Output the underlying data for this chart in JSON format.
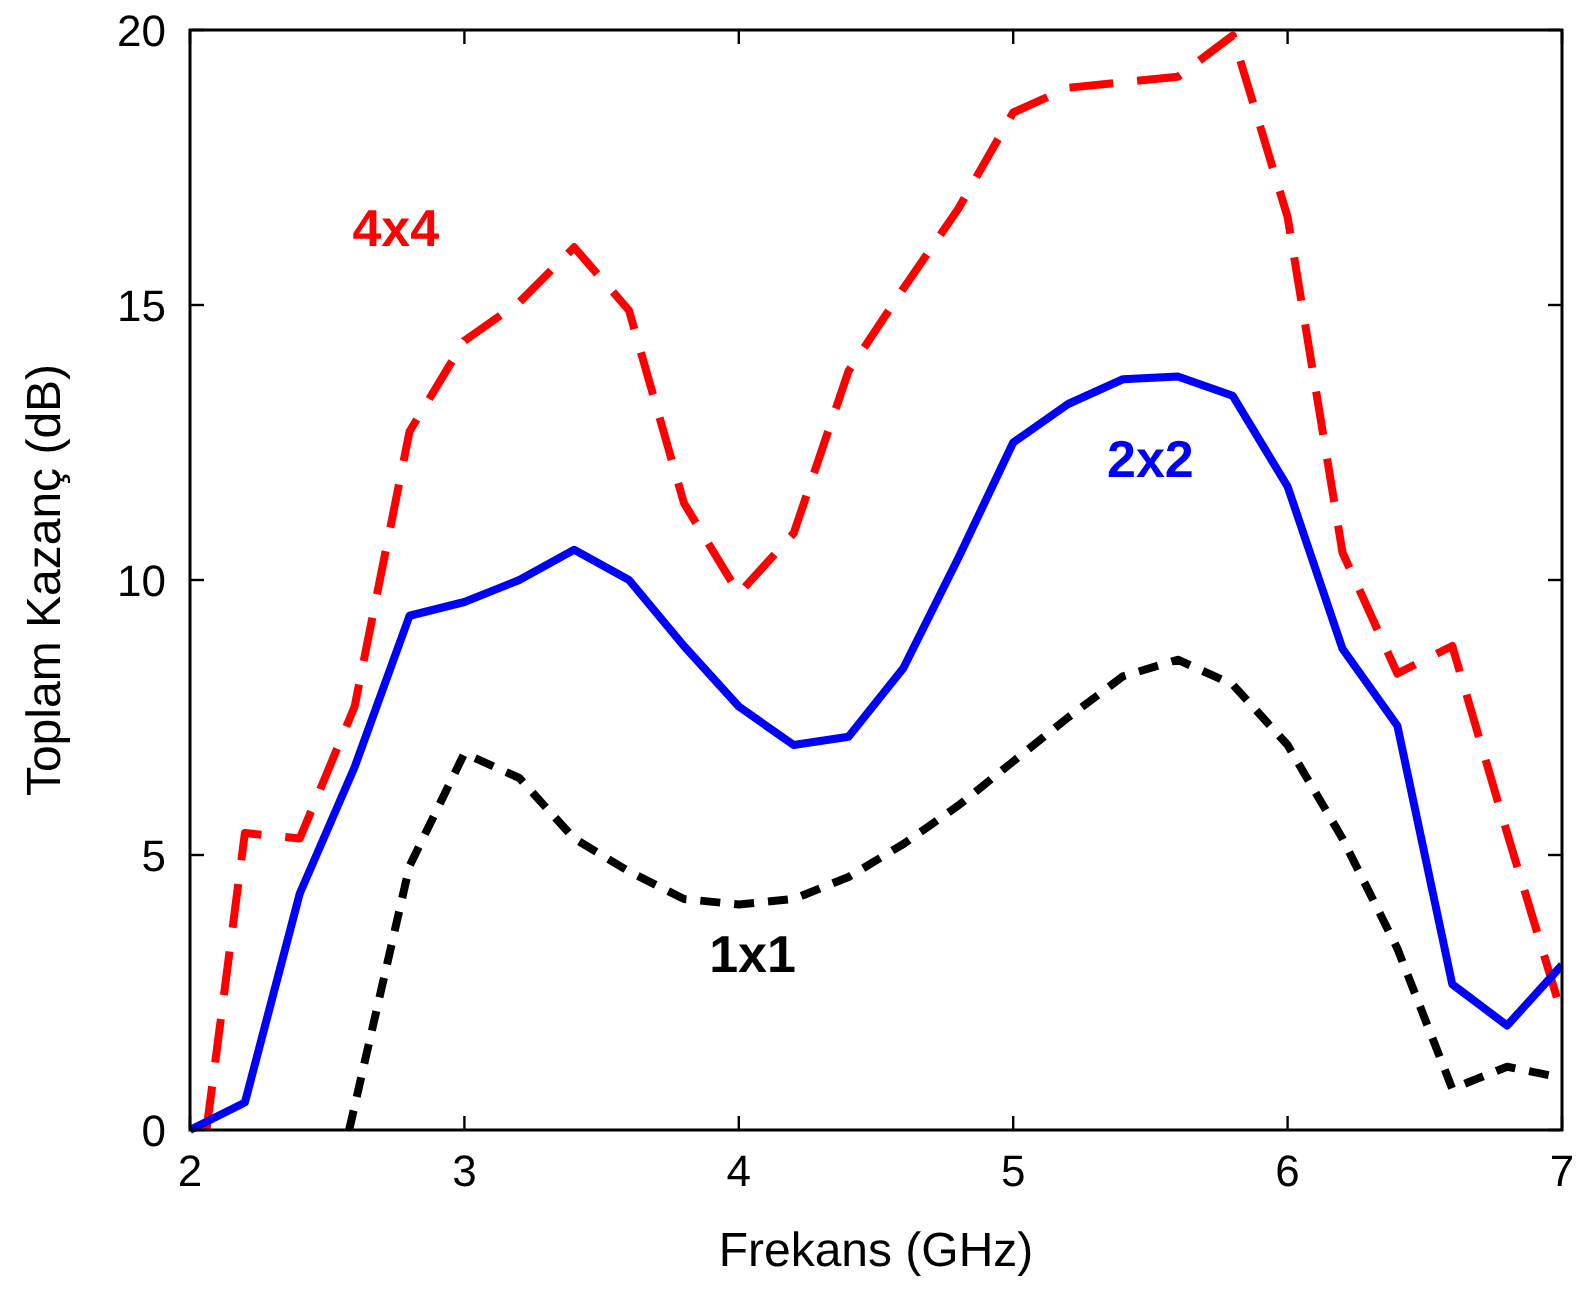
{
  "chart_data": {
    "type": "line",
    "xlabel": "Frekans (GHz)",
    "ylabel": "Toplam Kazanç (dB)",
    "x": [
      2,
      2.2,
      2.4,
      2.6,
      2.8,
      3,
      3.2,
      3.4,
      3.6,
      3.8,
      4,
      4.2,
      4.4,
      4.6,
      4.8,
      5,
      5.2,
      5.4,
      5.6,
      5.8,
      6,
      6.2,
      6.4,
      6.6,
      6.8,
      7
    ],
    "series": [
      {
        "name": "4x4",
        "color": "#ff0000",
        "line_style": "dashed",
        "x": [
          2.06,
          2.2,
          2.4,
          2.6,
          2.8,
          3,
          3.2,
          3.4,
          3.6,
          3.8,
          4,
          4.2,
          4.4,
          4.6,
          4.8,
          5,
          5.2,
          5.4,
          5.6,
          5.8,
          6,
          6.2,
          6.4,
          6.6,
          6.8,
          7
        ],
        "values": [
          0,
          5.4,
          5.3,
          7.7,
          12.7,
          14.35,
          15.05,
          16.05,
          14.9,
          11.4,
          9.75,
          10.85,
          13.8,
          15.3,
          16.75,
          18.5,
          18.95,
          19.05,
          19.15,
          19.9,
          16.6,
          10.5,
          8.3,
          8.8,
          5.4,
          2.1
        ]
      },
      {
        "name": "2x2",
        "color": "#0000ff",
        "line_style": "solid",
        "values": [
          0,
          0.5,
          4.3,
          6.6,
          9.35,
          9.6,
          10,
          10.55,
          10,
          8.8,
          7.7,
          7.0,
          7.15,
          8.4,
          10.4,
          12.5,
          13.2,
          13.65,
          13.7,
          13.35,
          11.7,
          8.75,
          7.35,
          2.65,
          1.9,
          3.0
        ]
      },
      {
        "name": "1x1",
        "color": "#000000",
        "line_style": "dotted",
        "x": [
          2.58,
          2.8,
          3,
          3.2,
          3.4,
          3.6,
          3.8,
          4,
          4.2,
          4.4,
          4.6,
          4.8,
          5,
          5.2,
          5.4,
          5.6,
          5.8,
          6,
          6.2,
          6.4,
          6.6,
          6.8,
          7
        ],
        "values": [
          0,
          4.8,
          6.85,
          6.4,
          5.3,
          4.7,
          4.2,
          4.1,
          4.2,
          4.6,
          5.2,
          5.9,
          6.7,
          7.5,
          8.25,
          8.55,
          8.1,
          7.0,
          5.3,
          3.3,
          0.75,
          1.15,
          0.95
        ]
      }
    ],
    "xlim": [
      2,
      7
    ],
    "xticks": [
      2,
      3,
      4,
      5,
      6,
      7
    ],
    "ylim": [
      0,
      20
    ],
    "yticks": [
      0,
      5,
      10,
      15,
      20
    ],
    "grid": false
  }
}
